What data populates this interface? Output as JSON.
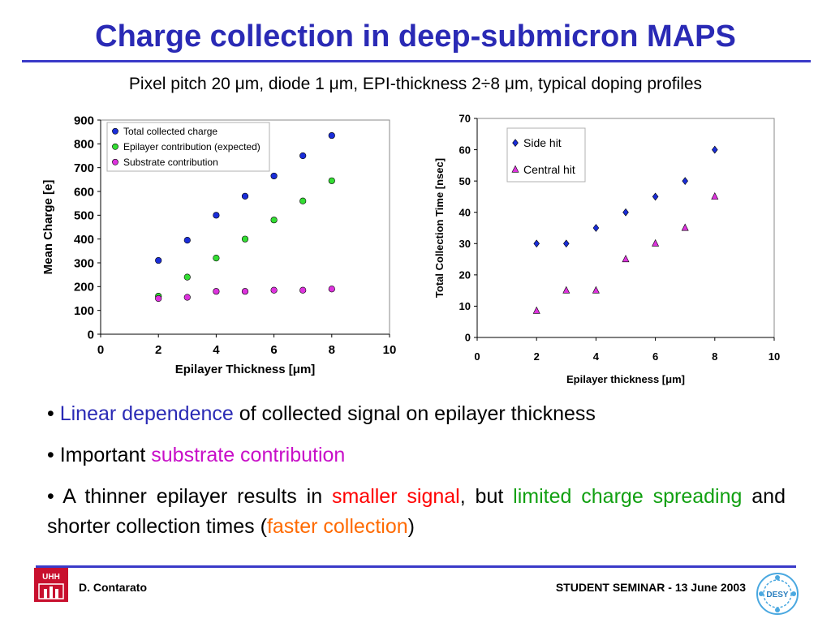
{
  "slide": {
    "title": "Charge collection in deep-submicron MAPS",
    "subtitle": "Pixel pitch 20 μm, diode 1 μm, EPI-thickness 2÷8 μm, typical doping profiles"
  },
  "bullets": [
    {
      "dot": "•",
      "parts": [
        "Linear dependence",
        " of collected signal on epilayer thickness"
      ]
    },
    {
      "dot": "•",
      "parts": [
        "Important ",
        "substrate contribution"
      ]
    },
    {
      "dot": "•",
      "parts": [
        " A thinner epilayer results in ",
        "smaller signal",
        ", but ",
        "limited charge spreading",
        " and shorter collection times (",
        "faster collection",
        ")"
      ]
    }
  ],
  "footer": {
    "author": "D. Contarato",
    "event": "STUDENT SEMINAR - 13 June 2003",
    "left_logo": "UHH",
    "right_logo": "DESY"
  },
  "colors": {
    "title": "#2a2ab5",
    "rule": "#3a3ac8",
    "blue_series": "#1a2dd8",
    "green_series": "#33dd33",
    "magenta_series": "#dd33dd",
    "highlight_magenta": "#c80fc8",
    "highlight_red": "#ff0000",
    "highlight_green": "#11a011",
    "highlight_orange": "#ff6a00"
  },
  "chart_data": [
    {
      "type": "scatter",
      "xlabel": "Epilayer Thickness [μm]",
      "ylabel": "Mean Charge [e]",
      "xlim": [
        0,
        10
      ],
      "ylim": [
        0,
        900
      ],
      "xticks": [
        0,
        2,
        4,
        6,
        8,
        10
      ],
      "yticks": [
        0,
        100,
        200,
        300,
        400,
        500,
        600,
        700,
        800,
        900
      ],
      "legend_position": "top-left",
      "grid": false,
      "series": [
        {
          "name": "Total collected charge",
          "marker": "circle",
          "color": "#1a2dd8",
          "x": [
            2,
            3,
            4,
            5,
            6,
            7,
            8
          ],
          "y": [
            310,
            395,
            500,
            580,
            665,
            750,
            835
          ]
        },
        {
          "name": "Epilayer contribution (expected)",
          "marker": "circle",
          "color": "#33dd33",
          "x": [
            2,
            3,
            4,
            5,
            6,
            7,
            8
          ],
          "y": [
            160,
            240,
            320,
            400,
            480,
            560,
            645
          ]
        },
        {
          "name": "Substrate contribution",
          "marker": "circle",
          "color": "#dd33dd",
          "x": [
            2,
            3,
            4,
            5,
            6,
            7,
            8
          ],
          "y": [
            150,
            155,
            180,
            180,
            185,
            185,
            190
          ]
        }
      ]
    },
    {
      "type": "scatter",
      "xlabel": "Epilayer thickness [μm]",
      "ylabel": "Total Collection Time [nsec]",
      "xlim": [
        0,
        10
      ],
      "ylim": [
        0,
        70
      ],
      "xticks": [
        0,
        2,
        4,
        6,
        8,
        10
      ],
      "yticks": [
        0,
        10,
        20,
        30,
        40,
        50,
        60,
        70
      ],
      "legend_position": "top-left",
      "grid": false,
      "series": [
        {
          "name": "Side hit",
          "marker": "diamond",
          "color": "#1a2dd8",
          "x": [
            2,
            3,
            4,
            5,
            6,
            7,
            8
          ],
          "y": [
            30,
            30,
            35,
            40,
            45,
            50,
            60
          ]
        },
        {
          "name": "Central hit",
          "marker": "triangle",
          "color": "#dd33dd",
          "x": [
            2,
            3,
            4,
            5,
            6,
            7,
            8
          ],
          "y": [
            8.5,
            15,
            15,
            25,
            30,
            35,
            45
          ]
        }
      ]
    }
  ]
}
